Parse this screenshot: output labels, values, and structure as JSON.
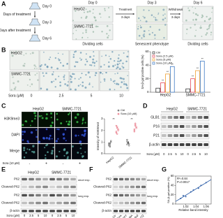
{
  "panel_labels": [
    "A",
    "B",
    "C",
    "D",
    "E",
    "F",
    "G"
  ],
  "a": {
    "schedule": [
      "Day 0",
      "Days of treatment",
      "Day 3",
      "Days after treatment",
      "Day 6"
    ],
    "days": [
      "Day 0",
      "Day 3",
      "Day 6"
    ],
    "cells": [
      "HepG2",
      "SMMC-7721"
    ],
    "steps": [
      {
        "action": "Treatment",
        "duration": "3 days"
      },
      {
        "action": "Withdrawal",
        "duration": "3 days"
      }
    ],
    "phenotypes": [
      "Dividing cells",
      "Senescent phenotype",
      "Dividing cells"
    ]
  },
  "b": {
    "cells": [
      "HepG2",
      "SMMC-7721"
    ],
    "dose_label": "Sora (μM)",
    "doses": [
      "0",
      "2.5",
      "5",
      "10"
    ],
    "chart": {
      "type": "bar",
      "y_label": "SA-β-gal positive cells (%)",
      "categories": [
        "HepG2",
        "SMMC-7721"
      ],
      "series": [
        {
          "name": "Ctrl",
          "color": "#333333",
          "values": [
            6,
            5
          ]
        },
        {
          "name": "Sora (2.5 μM)",
          "color": "#e0465a",
          "values": [
            14,
            20
          ]
        },
        {
          "name": "Sora (5 μM)",
          "color": "#f0a030",
          "values": [
            27,
            32
          ]
        },
        {
          "name": "Sora (10 μM)",
          "color": "#3b78c4",
          "values": [
            38,
            46
          ]
        }
      ],
      "ylim": [
        0,
        60
      ],
      "yticks": [
        0,
        20,
        40,
        60
      ],
      "significance": "**"
    }
  },
  "c": {
    "cells": [
      "HepG2",
      "SMMC-7721"
    ],
    "stains": [
      "H3K9me3",
      "DAPI",
      "Merge"
    ],
    "treatment_label": "Sora (10 μM)",
    "treatment_signs": [
      "-",
      "+",
      "-",
      "+"
    ],
    "chart": {
      "type": "scatter",
      "y_label": "Intensity of H3K9me3",
      "categories": [
        "HepG2",
        "SMMC-7721"
      ],
      "series": [
        {
          "name": "Ctrl",
          "color": "#333333",
          "values": [
            [
              0.7,
              0.9,
              1.0,
              0.8,
              0.6,
              1.1,
              0.9,
              0.75
            ],
            [
              0.8,
              1.0,
              0.7,
              1.2,
              0.9,
              0.85,
              1.05,
              0.95
            ]
          ]
        },
        {
          "name": "Sora (10 μM)",
          "color": "#e0465a",
          "values": [
            [
              1.8,
              2.2,
              2.0,
              2.4,
              1.7,
              2.1,
              1.9,
              2.3
            ],
            [
              2.0,
              2.5,
              2.2,
              1.9,
              2.6,
              2.3,
              2.1,
              2.4
            ]
          ]
        }
      ],
      "ylim": [
        0,
        3
      ],
      "yticks": [
        0,
        1,
        2,
        3
      ],
      "significance": "**"
    }
  },
  "d": {
    "cells": [
      "HepG2",
      "SMMC-7721"
    ],
    "proteins": [
      "GLB1",
      "P16",
      "P21",
      "β-actin"
    ],
    "dose_label": "Sora (μM)",
    "doses": [
      "0",
      "2.5",
      "5",
      "10",
      "0",
      "2.5",
      "5",
      "10"
    ]
  },
  "e": {
    "cells": [
      "HepG2",
      "SMMC-7721"
    ],
    "proteins": [
      "P62",
      "Cleaved-P62",
      "P62",
      "Cleaved-P62",
      "β-actin"
    ],
    "exposures": [
      "short exp.",
      "long exp."
    ],
    "dose_label": "Sora (μM)",
    "doses": [
      "0",
      "2.5",
      "5",
      "10",
      "0",
      "2.5",
      "5",
      "10"
    ]
  },
  "f": {
    "proteins": [
      "P62",
      "Cleaved-P62",
      "P62",
      "Cleaved-P62",
      "β-actin"
    ],
    "exposures": [
      "short exp.",
      "long exp."
    ],
    "treatments": [
      "Ctr",
      "Sora",
      "DAPT",
      "3-MA",
      "Baf",
      "CQ"
    ]
  },
  "g": {
    "chart": {
      "type": "scatter",
      "x_label": "Relative band intensity",
      "y_label": "SA-β-gal positive (%)",
      "x": [
        1.01,
        1.015,
        1.02,
        1.03,
        1.035,
        1.045,
        1.05,
        1.06
      ],
      "y": [
        12,
        18,
        16,
        26,
        30,
        34,
        40,
        46
      ],
      "xlim": [
        1.0,
        1.07
      ],
      "xticks": [
        1.02,
        1.04,
        1.06
      ],
      "ylim": [
        0,
        60
      ],
      "yticks": [
        0,
        20,
        40,
        60
      ],
      "annotations": [
        "R²=0.84",
        "P=0.0017"
      ]
    }
  }
}
